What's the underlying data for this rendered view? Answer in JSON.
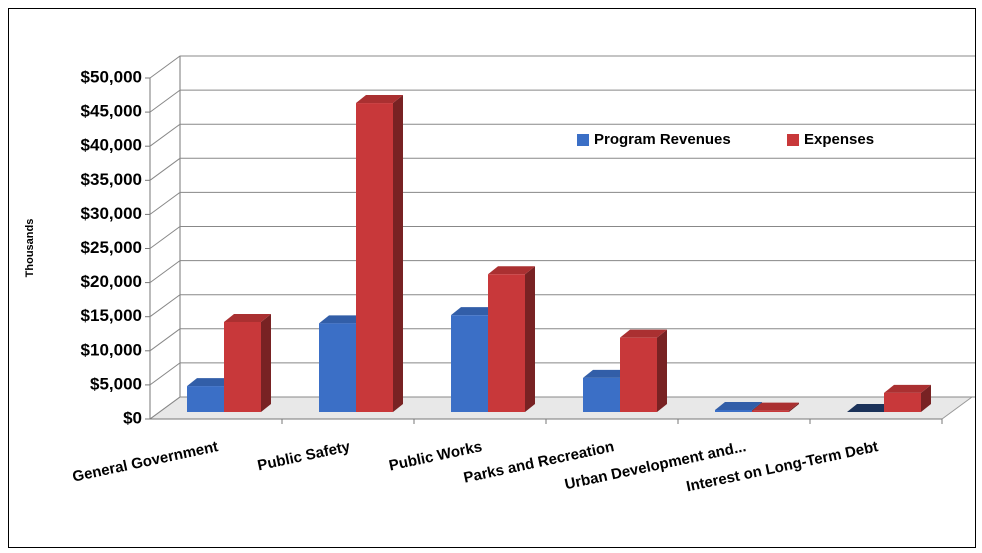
{
  "chart_data": {
    "type": "bar3d",
    "ylabel": "Thousands",
    "categories": [
      "General Government",
      "Public Safety",
      "Public Works",
      "Parks and Recreation",
      "Urban Development and...",
      "Interest on Long-Term Debt"
    ],
    "series": [
      {
        "name": "Program Revenues",
        "color": "#3b6fc6",
        "values": [
          3800,
          13000,
          14200,
          5000,
          300,
          0
        ]
      },
      {
        "name": "Expenses",
        "color": "#c8383a",
        "values": [
          13200,
          45300,
          20200,
          10900,
          200,
          2800
        ]
      }
    ],
    "ylim": [
      0,
      50000
    ],
    "yticks": [
      {
        "value": 0,
        "label": "$0"
      },
      {
        "value": 5000,
        "label": "$5,000"
      },
      {
        "value": 10000,
        "label": "$10,000"
      },
      {
        "value": 15000,
        "label": "$15,000"
      },
      {
        "value": 20000,
        "label": "$20,000"
      },
      {
        "value": 25000,
        "label": "$25,000"
      },
      {
        "value": 30000,
        "label": "$30,000"
      },
      {
        "value": 35000,
        "label": "$35,000"
      },
      {
        "value": 40000,
        "label": "$40,000"
      },
      {
        "value": 45000,
        "label": "$45,000"
      },
      {
        "value": 50000,
        "label": "$50,000"
      }
    ],
    "grid": true,
    "legend": "upper right"
  }
}
